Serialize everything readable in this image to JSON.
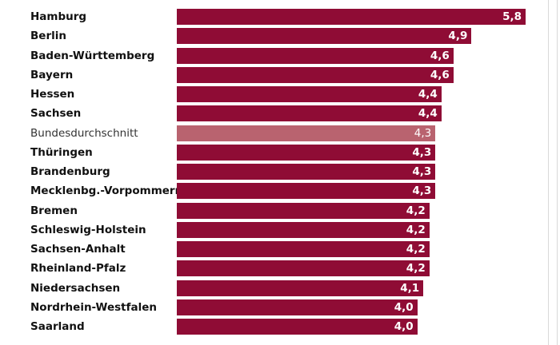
{
  "colors": {
    "bar": "#8f0c35",
    "bar_average": "#b9636f"
  },
  "chart_data": {
    "type": "bar",
    "orientation": "horizontal",
    "title": "",
    "xlabel": "",
    "ylabel": "",
    "xlim": [
      0,
      5.8
    ],
    "grid": false,
    "legend": "none",
    "categories": [
      "Hamburg",
      "Berlin",
      "Baden-Württemberg",
      "Bayern",
      "Hessen",
      "Sachsen",
      "Bundesdurchschnitt",
      "Thüringen",
      "Brandenburg",
      "Mecklenbg.-Vorpommern",
      "Bremen",
      "Schleswig-Holstein",
      "Sachsen-Anhalt",
      "Rheinland-Pfalz",
      "Niedersachsen",
      "Nordrhein-Westfalen",
      "Saarland"
    ],
    "values": [
      5.8,
      4.9,
      4.6,
      4.6,
      4.4,
      4.4,
      4.3,
      4.3,
      4.3,
      4.3,
      4.2,
      4.2,
      4.2,
      4.2,
      4.1,
      4.0,
      4.0
    ],
    "value_labels": [
      "5,8",
      "4,9",
      "4,6",
      "4,6",
      "4,4",
      "4,4",
      "4,3",
      "4,3",
      "4,3",
      "4,3",
      "4,2",
      "4,2",
      "4,2",
      "4,2",
      "4,1",
      "4,0",
      "4,0"
    ],
    "highlight_category": "Bundesdurchschnitt"
  }
}
